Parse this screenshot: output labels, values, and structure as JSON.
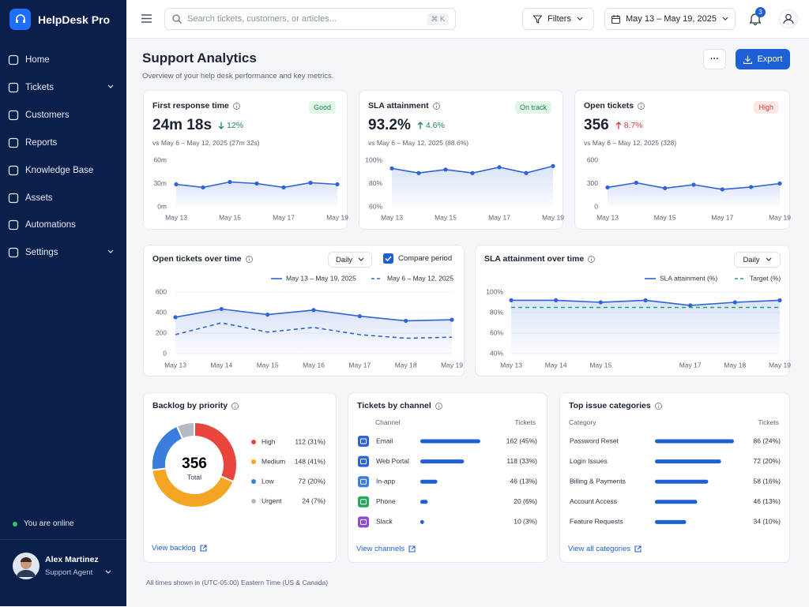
{
  "sidebar": {
    "brand": "HelpDesk Pro",
    "nav": [
      {
        "label": "Home",
        "expandable": false
      },
      {
        "label": "Tickets",
        "expandable": true
      },
      {
        "label": "Customers",
        "expandable": false
      },
      {
        "label": "Reports",
        "expandable": false
      },
      {
        "label": "Knowledge Base",
        "expandable": false
      },
      {
        "label": "Assets",
        "expandable": false
      },
      {
        "label": "Automations",
        "expandable": false
      },
      {
        "label": "Settings",
        "expandable": true
      }
    ],
    "status": "You are online",
    "user": {
      "name": "Alex Martinez",
      "role": "Support Agent"
    }
  },
  "topbar": {
    "search_placeholder": "Search tickets, customers, or articles...",
    "shortcut": "⌘ K",
    "filters": "Filters",
    "date_range": "May 13 – May 19, 2025",
    "notifications": 3
  },
  "header": {
    "title": "Support Analytics",
    "subtitle": "Overview of your help desk performance and key metrics.",
    "more": "···",
    "export": "Export"
  },
  "kpis": [
    {
      "label": "First response time",
      "badge": {
        "text": "Good",
        "tone": "good"
      },
      "value": "24m 18s",
      "delta": {
        "text": "12%",
        "direction": "down",
        "tone": "good"
      },
      "comparison": "vs May 6 – May 12, 2025 (27m 32s)",
      "chart": {
        "type": "line",
        "categories": [
          "May 13",
          null,
          "May 15",
          null,
          "May 17",
          null,
          "May 19"
        ],
        "values": [
          29,
          25,
          32,
          30,
          25,
          31,
          29
        ],
        "color": "#2f63d8",
        "area": true,
        "markers": true,
        "grid": false,
        "ylim": [
          0,
          60
        ],
        "yticks": [
          {
            "value": 0,
            "label": "0m"
          },
          {
            "value": 30,
            "label": "30m"
          },
          {
            "value": 60,
            "label": "60m"
          }
        ]
      }
    },
    {
      "label": "SLA attainment",
      "badge": {
        "text": "On track",
        "tone": "good"
      },
      "value": "93.2%",
      "delta": {
        "text": "4.6%",
        "direction": "up",
        "tone": "good"
      },
      "comparison": "vs May 6 – May 12, 2025 (88.6%)",
      "chart": {
        "type": "line",
        "categories": [
          "May 13",
          null,
          "May 15",
          null,
          "May 17",
          null,
          "May 19"
        ],
        "values": [
          93,
          89,
          92,
          89,
          94,
          89,
          95
        ],
        "color": "#2f63d8",
        "area": true,
        "markers": true,
        "grid": false,
        "ylim": [
          60,
          100
        ],
        "yticks": [
          {
            "value": 60,
            "label": "60%"
          },
          {
            "value": 80,
            "label": "80%"
          },
          {
            "value": 100,
            "label": "100%"
          }
        ]
      }
    },
    {
      "label": "Open tickets",
      "badge": {
        "text": "High",
        "tone": "bad"
      },
      "value": "356",
      "delta": {
        "text": "8.7%",
        "direction": "up",
        "tone": "bad"
      },
      "comparison": "vs May 6 – May 12, 2025 (328)",
      "chart": {
        "type": "line",
        "categories": [
          "May 13",
          null,
          "May 15",
          null,
          "May 17",
          null,
          "May 19"
        ],
        "values": [
          250,
          310,
          240,
          285,
          225,
          255,
          300
        ],
        "color": "#2f63d8",
        "area": true,
        "markers": true,
        "grid": false,
        "ylim": [
          0,
          600
        ],
        "yticks": [
          0,
          300,
          600
        ]
      }
    }
  ],
  "trends": [
    {
      "title": "Open tickets over time",
      "interval": "Daily",
      "compare": "Compare period",
      "compare_checked": true,
      "chart": {
        "type": "line",
        "categories": [
          "May 13",
          "May 14",
          "May 15",
          "May 16",
          "May 17",
          "May 18",
          "May 19"
        ],
        "ylim": [
          0,
          600
        ],
        "yticks": [
          0,
          200,
          400,
          600
        ],
        "grid": true,
        "series": [
          {
            "name": "May 13 – May 19, 2025",
            "color": "#2f63d8",
            "values": [
              355,
              435,
              380,
              425,
              365,
              320,
              330
            ],
            "area": true,
            "markers": true,
            "dashed": false
          },
          {
            "name": "May 6 – May 12, 2025",
            "color": "#2f63d8",
            "values": [
              185,
              300,
              210,
              255,
              185,
              150,
              160
            ],
            "area": false,
            "markers": false,
            "dashed": true
          }
        ]
      }
    },
    {
      "title": "SLA attainment over time",
      "interval": "Daily",
      "chart": {
        "type": "line",
        "categories": [
          "May 13",
          "May 14",
          "May 15",
          null,
          "May 17",
          "May 18",
          "May 19"
        ],
        "ylim": [
          40,
          100
        ],
        "yticks": [
          {
            "value": 40,
            "label": "40%"
          },
          {
            "value": 60,
            "label": "60%"
          },
          {
            "value": 80,
            "label": "80%"
          },
          {
            "value": 100,
            "label": "100%"
          }
        ],
        "grid": true,
        "series": [
          {
            "name": "SLA attainment (%)",
            "color": "#2f63d8",
            "values": [
              92,
              92,
              90,
              92,
              87,
              90,
              92
            ],
            "area": true,
            "markers": true,
            "dashed": false
          },
          {
            "name": "Target (%)",
            "color": "#22a85a",
            "values": [
              85,
              85,
              85,
              85,
              85,
              85,
              85
            ],
            "area": false,
            "markers": false,
            "dashed": true
          }
        ]
      }
    }
  ],
  "backlog": {
    "title": "Backlog by priority",
    "type": "donut",
    "total": 356,
    "total_label": "Total",
    "items": [
      {
        "name": "High",
        "value": 112,
        "value_label": "112 (31%)",
        "color": "#e8453c"
      },
      {
        "name": "Medium",
        "value": 148,
        "value_label": "148 (41%)",
        "color": "#f5a524"
      },
      {
        "name": "Low",
        "value": 72,
        "value_label": "72 (20%)",
        "color": "#3b7ddd"
      },
      {
        "name": "Urgent",
        "value": 24,
        "value_label": "24 (7%)",
        "color": "#b4b9c2"
      }
    ],
    "link": "View backlog"
  },
  "channels": {
    "title": "Tickets by channel",
    "columns": [
      "Channel",
      "Tickets"
    ],
    "bar_color": "#1f5fd6",
    "rows": [
      {
        "name": "Email",
        "value": 162,
        "value_label": "162 (45%)",
        "icon_color": "#2f63d8"
      },
      {
        "name": "Web Portal",
        "value": 118,
        "value_label": "118 (33%)",
        "icon_color": "#2f63d8"
      },
      {
        "name": "In-app",
        "value": 46,
        "value_label": "46 (13%)",
        "icon_color": "#3a7be6"
      },
      {
        "name": "Phone",
        "value": 20,
        "value_label": "20 (6%)",
        "icon_color": "#22a85a"
      },
      {
        "name": "Slack",
        "value": 10,
        "value_label": "10 (3%)",
        "icon_color": "#8a4bd1"
      }
    ],
    "link": "View channels"
  },
  "categories": {
    "title": "Top issue categories",
    "columns": [
      "Category",
      "Tickets"
    ],
    "bar_color": "#1f5fd6",
    "rows": [
      {
        "name": "Password Reset",
        "value": 86,
        "value_label": "86 (24%)"
      },
      {
        "name": "Login Issues",
        "value": 72,
        "value_label": "72 (20%)"
      },
      {
        "name": "Billing & Payments",
        "value": 58,
        "value_label": "58 (16%)"
      },
      {
        "name": "Account Access",
        "value": 46,
        "value_label": "46 (13%)"
      },
      {
        "name": "Feature Requests",
        "value": 34,
        "value_label": "34 (10%)"
      }
    ],
    "link": "View all categories"
  },
  "footer": {
    "note": "All times shown in (UTC-05:00) Eastern Time (US & Canada)"
  }
}
